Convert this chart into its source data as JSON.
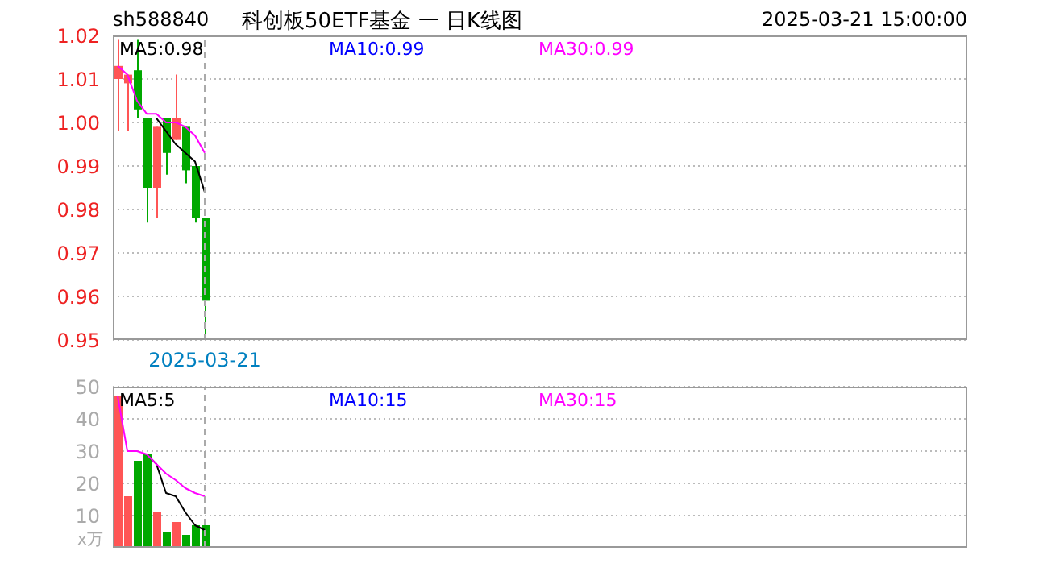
{
  "chart_data": [
    {
      "type": "candlestick",
      "title": "科创板50ETF基金 一 日K线图",
      "annotations": [
        "sh588840",
        "2025-03-21 15:00:00",
        "MA10:0.99"
      ],
      "categories": [
        null,
        null,
        null,
        null,
        null,
        null,
        null,
        null,
        null,
        "2025-03-21"
      ],
      "ohlc": [
        [
          1.01,
          1.019,
          0.998,
          1.013
        ],
        [
          1.009,
          1.011,
          0.998,
          1.011
        ],
        [
          1.012,
          1.019,
          1.001,
          1.003
        ],
        [
          1.001,
          1.001,
          0.977,
          0.985
        ],
        [
          0.985,
          0.999,
          0.978,
          0.999
        ],
        [
          1.001,
          1.001,
          0.988,
          0.993
        ],
        [
          0.996,
          1.011,
          0.996,
          1.001
        ],
        [
          0.999,
          0.999,
          0.986,
          0.989
        ],
        [
          0.99,
          0.99,
          0.977,
          0.978
        ],
        [
          0.978,
          0.978,
          0.95,
          0.959
        ]
      ],
      "colors": [
        "#ff5555",
        "#ff5555",
        "#00a800",
        "#00a800",
        "#ff5555",
        "#00a800",
        "#ff5555",
        "#00a800",
        "#00a800",
        "#00a800"
      ],
      "series": [
        {
          "type": "line",
          "name": "MA5:0.98",
          "color": "#000000",
          "values": [
            null,
            null,
            null,
            null,
            1.001,
            0.998,
            0.995,
            0.993,
            0.991,
            0.984
          ]
        },
        {
          "type": "line",
          "name": "MA30:0.99",
          "color": "#ff00ff",
          "values": [
            1.013,
            1.011,
            1.005,
            1.002,
            1.002,
            1.0,
            1.0,
            0.999,
            0.997,
            0.993
          ]
        }
      ],
      "ylim": [
        0.95,
        1.02
      ],
      "yticks": [
        0.95,
        0.96,
        0.97,
        0.98,
        0.99,
        {
          "value": 1,
          "label": "1.00"
        },
        1.01,
        1.02
      ],
      "grid": "y",
      "legend": "top"
    },
    {
      "type": "bar",
      "ylabel": "x万",
      "annotations": [
        "MA10:15"
      ],
      "categories": [
        null,
        null,
        null,
        null,
        null,
        null,
        null,
        null,
        null,
        null
      ],
      "values": [
        47,
        16,
        27,
        29,
        11,
        5,
        8,
        4,
        7,
        7
      ],
      "colors": [
        "#ff5555",
        "#ff5555",
        "#00a800",
        "#00a800",
        "#ff5555",
        "#00a800",
        "#ff5555",
        "#00a800",
        "#00a800",
        "#00a800"
      ],
      "series": [
        {
          "type": "line",
          "name": "MA5:5",
          "color": "#000000",
          "values": [
            null,
            null,
            null,
            29,
            26,
            17,
            16,
            11,
            7,
            5.5
          ]
        },
        {
          "type": "line",
          "name": "MA30:15",
          "color": "#ff00ff",
          "values": [
            47,
            30,
            30,
            29,
            26,
            23,
            21,
            18.5,
            17,
            16
          ]
        }
      ],
      "ylim": [
        0,
        50
      ],
      "yticks": [
        10,
        20,
        30,
        40,
        50
      ],
      "grid": "y",
      "legend": "top",
      "tick_labels": "y"
    }
  ]
}
